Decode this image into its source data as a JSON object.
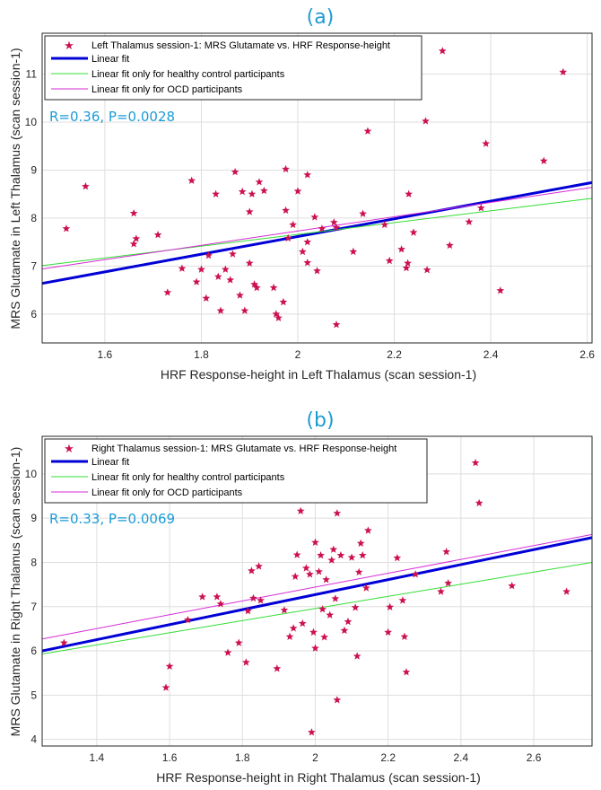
{
  "chart_data": [
    {
      "type": "scatter",
      "title": "(a)",
      "xlabel": "HRF Response-height in Left Thalamus (scan session-1)",
      "ylabel": "MRS Glutamate in Left Thalamus (scan session-1)",
      "xlim": [
        1.47,
        2.61
      ],
      "ylim": [
        5.4,
        11.85
      ],
      "xticks": [
        "1.6",
        "1.8",
        "2",
        "2.2",
        "2.4",
        "2.6"
      ],
      "yticks": [
        "6",
        "7",
        "8",
        "9",
        "10",
        "11"
      ],
      "grid": true,
      "legend_position": "top-left",
      "annotation": "R=0.36, P=0.0028",
      "colors": {
        "points": "#cc1150",
        "fit": "#0000d6",
        "hc": "#33dd33",
        "ocd": "#d62bd6"
      },
      "series": [
        {
          "name": "Left Thalamus session-1: MRS Glutamate vs. HRF Response-height",
          "kind": "points",
          "points": [
            [
              1.52,
              7.78
            ],
            [
              1.56,
              8.66
            ],
            [
              1.66,
              8.1
            ],
            [
              1.66,
              7.46
            ],
            [
              1.665,
              7.57
            ],
            [
              1.71,
              7.65
            ],
            [
              1.73,
              6.45
            ],
            [
              1.76,
              6.95
            ],
            [
              1.78,
              8.78
            ],
            [
              1.79,
              6.67
            ],
            [
              1.8,
              6.93
            ],
            [
              1.81,
              6.33
            ],
            [
              1.815,
              7.22
            ],
            [
              1.83,
              8.5
            ],
            [
              1.835,
              6.78
            ],
            [
              1.84,
              6.07
            ],
            [
              1.85,
              6.93
            ],
            [
              1.86,
              6.71
            ],
            [
              1.865,
              7.25
            ],
            [
              1.87,
              8.96
            ],
            [
              1.88,
              6.39
            ],
            [
              1.885,
              8.55
            ],
            [
              1.89,
              6.07
            ],
            [
              1.9,
              8.13
            ],
            [
              1.9,
              7.06
            ],
            [
              1.905,
              8.5
            ],
            [
              1.91,
              6.62
            ],
            [
              1.915,
              6.55
            ],
            [
              1.92,
              8.75
            ],
            [
              1.93,
              8.57
            ],
            [
              1.95,
              6.55
            ],
            [
              1.955,
              6.0
            ],
            [
              1.96,
              5.92
            ],
            [
              1.97,
              6.25
            ],
            [
              1.975,
              8.16
            ],
            [
              1.975,
              9.02
            ],
            [
              1.98,
              7.58
            ],
            [
              1.99,
              7.86
            ],
            [
              2.0,
              8.56
            ],
            [
              2.01,
              7.3
            ],
            [
              2.02,
              7.5
            ],
            [
              2.02,
              7.07
            ],
            [
              2.02,
              8.9
            ],
            [
              2.035,
              8.02
            ],
            [
              2.04,
              6.9
            ],
            [
              2.05,
              7.78
            ],
            [
              2.075,
              7.91
            ],
            [
              2.08,
              5.78
            ],
            [
              2.08,
              7.8
            ],
            [
              2.115,
              7.3
            ],
            [
              2.135,
              8.09
            ],
            [
              2.145,
              9.81
            ],
            [
              2.18,
              7.86
            ],
            [
              2.19,
              7.11
            ],
            [
              2.215,
              7.35
            ],
            [
              2.225,
              6.96
            ],
            [
              2.228,
              7.06
            ],
            [
              2.23,
              8.5
            ],
            [
              2.24,
              7.7
            ],
            [
              2.265,
              10.02
            ],
            [
              2.268,
              6.92
            ],
            [
              2.3,
              11.48
            ],
            [
              2.315,
              7.43
            ],
            [
              2.355,
              7.92
            ],
            [
              2.38,
              8.21
            ],
            [
              2.39,
              9.55
            ],
            [
              2.42,
              6.49
            ],
            [
              2.51,
              9.19
            ],
            [
              2.55,
              11.04
            ]
          ]
        },
        {
          "name": "Linear fit",
          "kind": "line",
          "x": [
            1.47,
            2.61
          ],
          "y": [
            6.64,
            8.74
          ]
        },
        {
          "name": "Linear fit only for healthy control participants",
          "kind": "line",
          "x": [
            1.47,
            2.61
          ],
          "y": [
            7.01,
            8.41
          ]
        },
        {
          "name": "Linear fit only for OCD participants",
          "kind": "line",
          "x": [
            1.47,
            2.61
          ],
          "y": [
            6.94,
            8.64
          ]
        }
      ]
    },
    {
      "type": "scatter",
      "title": "(b)",
      "xlabel": "HRF Response-height in Right Thalamus (scan session-1)",
      "ylabel": "MRS Glutamate in Right Thalamus (scan session-1)",
      "xlim": [
        1.25,
        2.76
      ],
      "ylim": [
        3.85,
        10.85
      ],
      "xticks": [
        "1.4",
        "1.6",
        "1.8",
        "2",
        "2.2",
        "2.4",
        "2.6"
      ],
      "yticks": [
        "4",
        "5",
        "6",
        "7",
        "8",
        "9",
        "10"
      ],
      "grid": true,
      "legend_position": "top-left",
      "annotation": "R=0.33, P=0.0069",
      "colors": {
        "points": "#cc1150",
        "fit": "#0000d6",
        "hc": "#33dd33",
        "ocd": "#d62bd6"
      },
      "series": [
        {
          "name": "Right Thalamus session-1: MRS Glutamate vs. HRF Response-height",
          "kind": "points",
          "points": [
            [
              1.31,
              6.18
            ],
            [
              1.59,
              5.17
            ],
            [
              1.6,
              5.65
            ],
            [
              1.65,
              6.7
            ],
            [
              1.69,
              7.22
            ],
            [
              1.73,
              7.22
            ],
            [
              1.74,
              7.06
            ],
            [
              1.76,
              5.96
            ],
            [
              1.79,
              6.18
            ],
            [
              1.81,
              5.74
            ],
            [
              1.815,
              6.9
            ],
            [
              1.825,
              7.81
            ],
            [
              1.83,
              7.19
            ],
            [
              1.845,
              7.91
            ],
            [
              1.85,
              7.14
            ],
            [
              1.895,
              5.6
            ],
            [
              1.915,
              6.92
            ],
            [
              1.93,
              6.32
            ],
            [
              1.94,
              6.51
            ],
            [
              1.945,
              7.68
            ],
            [
              1.95,
              8.17
            ],
            [
              1.96,
              9.16
            ],
            [
              1.965,
              6.62
            ],
            [
              1.975,
              7.87
            ],
            [
              1.985,
              7.73
            ],
            [
              1.99,
              4.16
            ],
            [
              1.995,
              6.42
            ],
            [
              2.0,
              6.06
            ],
            [
              2.0,
              8.45
            ],
            [
              2.01,
              7.79
            ],
            [
              2.015,
              8.16
            ],
            [
              2.02,
              6.94
            ],
            [
              2.025,
              6.31
            ],
            [
              2.03,
              7.61
            ],
            [
              2.04,
              6.81
            ],
            [
              2.045,
              8.05
            ],
            [
              2.05,
              8.29
            ],
            [
              2.055,
              7.18
            ],
            [
              2.06,
              4.89
            ],
            [
              2.06,
              9.11
            ],
            [
              2.07,
              8.16
            ],
            [
              2.08,
              6.46
            ],
            [
              2.09,
              6.66
            ],
            [
              2.1,
              8.11
            ],
            [
              2.11,
              6.98
            ],
            [
              2.115,
              5.88
            ],
            [
              2.12,
              7.78
            ],
            [
              2.125,
              8.43
            ],
            [
              2.13,
              8.16
            ],
            [
              2.14,
              7.42
            ],
            [
              2.145,
              8.72
            ],
            [
              2.2,
              6.42
            ],
            [
              2.205,
              6.99
            ],
            [
              2.225,
              8.1
            ],
            [
              2.24,
              7.14
            ],
            [
              2.245,
              6.32
            ],
            [
              2.25,
              5.52
            ],
            [
              2.275,
              7.73
            ],
            [
              2.345,
              7.34
            ],
            [
              2.36,
              8.24
            ],
            [
              2.365,
              7.53
            ],
            [
              2.44,
              10.25
            ],
            [
              2.45,
              9.34
            ],
            [
              2.54,
              7.47
            ],
            [
              2.69,
              7.34
            ]
          ]
        },
        {
          "name": "Linear fit",
          "kind": "line",
          "x": [
            1.25,
            2.76
          ],
          "y": [
            6.0,
            8.56
          ]
        },
        {
          "name": "Linear fit only for healthy control participants",
          "kind": "line",
          "x": [
            1.25,
            2.76
          ],
          "y": [
            5.93,
            8.0
          ]
        },
        {
          "name": "Linear fit only for OCD participants",
          "kind": "line",
          "x": [
            1.25,
            2.76
          ],
          "y": [
            6.27,
            8.63
          ]
        }
      ]
    }
  ]
}
